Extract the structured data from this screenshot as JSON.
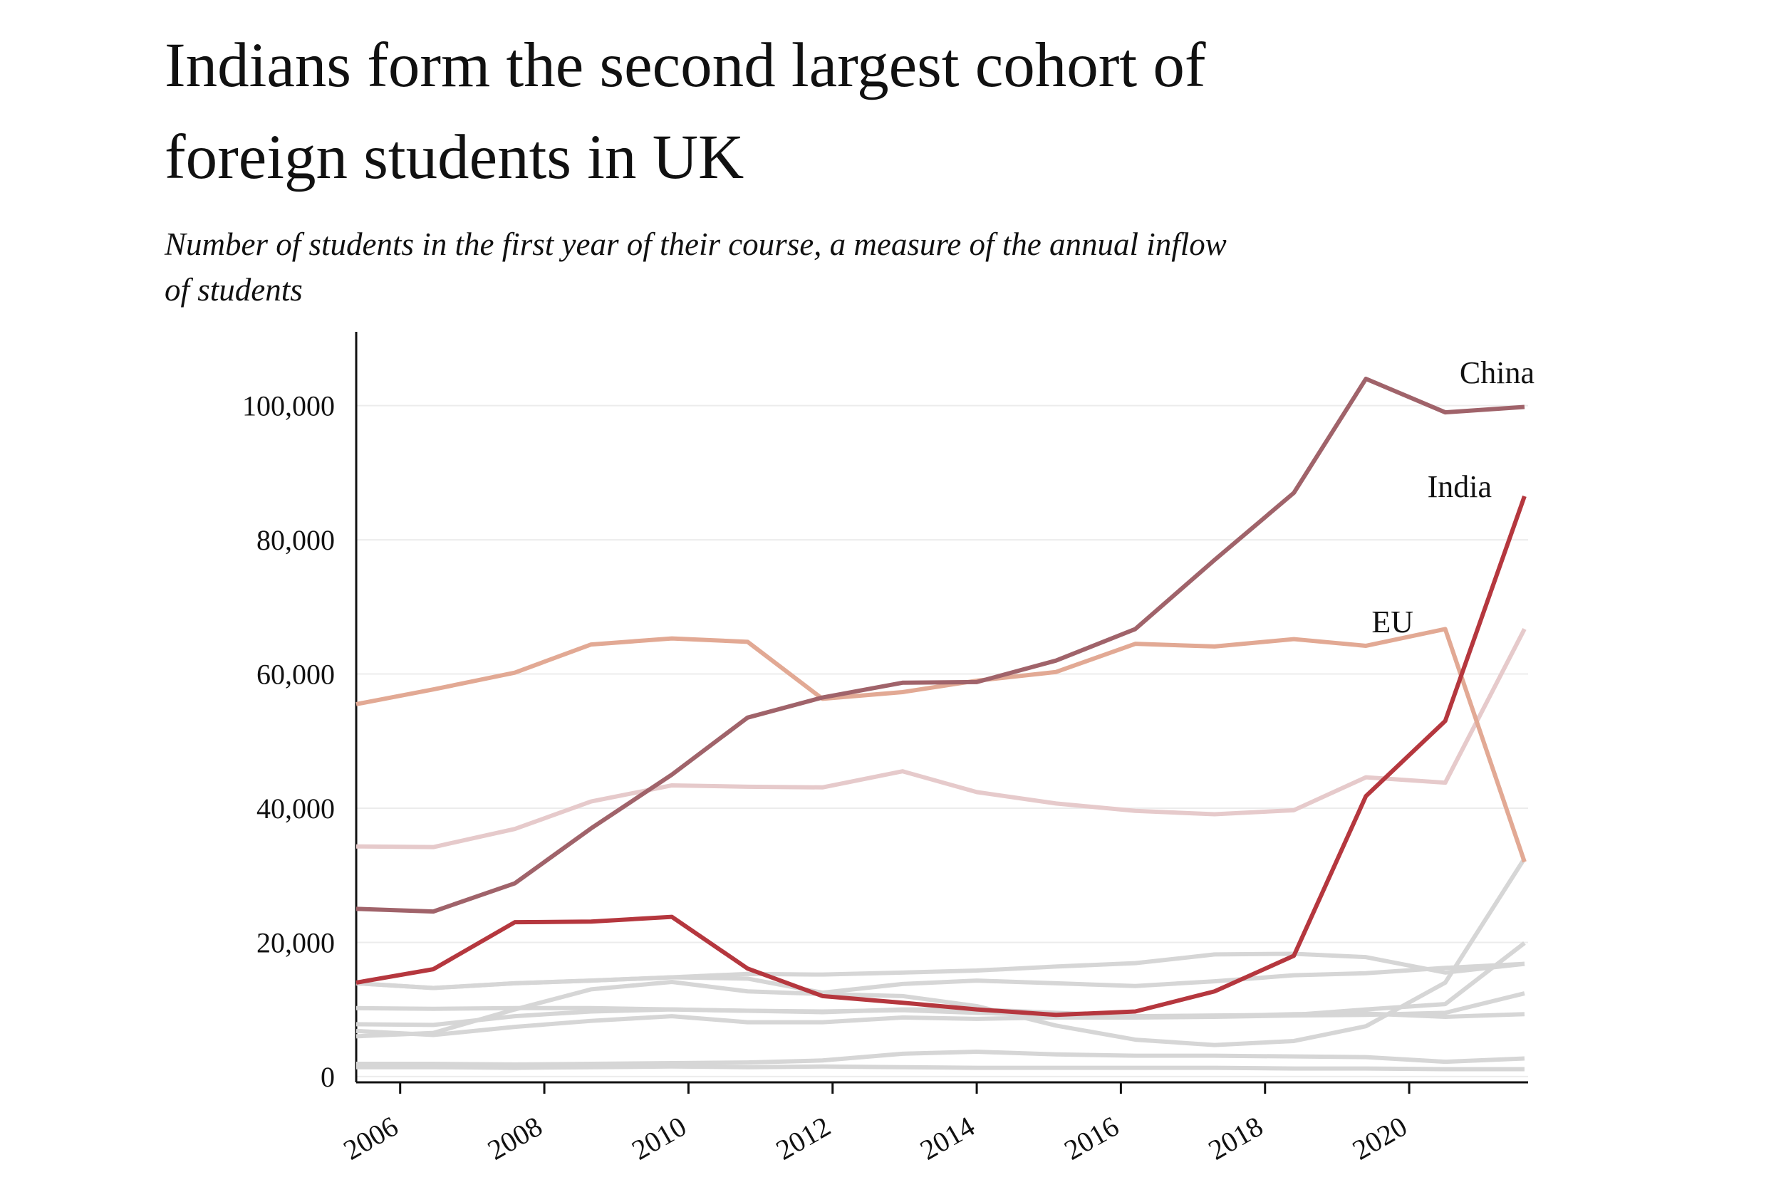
{
  "chart_data": {
    "type": "line",
    "title": [
      "Indians form the second largest cohort of",
      "foreign students in UK"
    ],
    "subtitle": [
      "Number of students in the first year of their course, a measure of the annual inflow",
      "of students"
    ],
    "x": [
      2005.39,
      2006.46,
      2007.59,
      2008.65,
      2009.77,
      2010.82,
      2011.86,
      2012.97,
      2014.0,
      2015.1,
      2016.2,
      2017.3,
      2018.4,
      2019.4,
      2020.5,
      2021.6
    ],
    "xlim": [
      2005.39,
      2021.65
    ],
    "xticks": [
      2006,
      2008,
      2010,
      2012,
      2014,
      2016,
      2018,
      2020
    ],
    "ylim": [
      -860,
      111000
    ],
    "yticks": [
      0,
      {
        "value": 20000,
        "label": "20,000"
      },
      {
        "value": 40000,
        "label": "40,000"
      },
      {
        "value": 60000,
        "label": "60,000"
      },
      {
        "value": 80000,
        "label": "80,000"
      },
      {
        "value": 100000,
        "label": "100,000"
      }
    ],
    "grid": true,
    "series": [
      {
        "color": "#d6d6d6",
        "values": [
          6000,
          6500,
          10000,
          13000,
          14100,
          12700,
          12300,
          12000,
          10500,
          7600,
          5500,
          4700,
          5300,
          7500,
          14000,
          32500
        ]
      },
      {
        "color": "#d6d6d6",
        "values": [
          13900,
          13200,
          13900,
          14300,
          14800,
          15300,
          15200,
          15500,
          15800,
          16400,
          16900,
          18200,
          18300,
          17800,
          15500,
          16800
        ]
      },
      {
        "color": "#d6d6d6",
        "values": [
          10200,
          10100,
          10200,
          10200,
          10000,
          9800,
          9700,
          9900,
          9500,
          9100,
          9000,
          9100,
          9200,
          10000,
          10800,
          19900
        ]
      },
      {
        "color": "#d6d6d6",
        "values": [
          7800,
          7700,
          9000,
          9700,
          10000,
          9800,
          9600,
          10000,
          10000,
          9500,
          9000,
          9000,
          9300,
          9400,
          8900,
          9300
        ]
      },
      {
        "color": "#d6d6d6",
        "values": [
          6800,
          6200,
          7400,
          8300,
          9000,
          8100,
          8100,
          8800,
          8600,
          8800,
          8800,
          8900,
          9100,
          9200,
          9500,
          12400
        ]
      },
      {
        "color": "#d6d6d6",
        "values": [
          13900,
          13200,
          13900,
          14300,
          14800,
          14600,
          12500,
          13800,
          14300,
          13900,
          13500,
          14200,
          15100,
          15400,
          16200,
          16800
        ]
      },
      {
        "color": "#d6d6d6",
        "values": [
          1900,
          1900,
          1800,
          1900,
          2000,
          2100,
          2400,
          3400,
          3700,
          3300,
          3100,
          3100,
          3000,
          2900,
          2200,
          2700
        ]
      },
      {
        "color": "#d6d6d6",
        "values": [
          1400,
          1400,
          1300,
          1400,
          1500,
          1400,
          1500,
          1400,
          1300,
          1300,
          1300,
          1300,
          1200,
          1200,
          1100,
          1100
        ]
      },
      {
        "color": "#e6cacb",
        "values": [
          34300,
          34200,
          36900,
          41000,
          43400,
          43200,
          43100,
          45500,
          42400,
          40700,
          39600,
          39100,
          39700,
          44600,
          43800,
          66700
        ]
      },
      {
        "name": "EU",
        "color": "#e2a994",
        "values": [
          55500,
          57700,
          60200,
          64400,
          65300,
          64800,
          56300,
          57300,
          59000,
          60300,
          64500,
          64100,
          65200,
          64200,
          66700,
          32000
        ]
      },
      {
        "name": "China",
        "color": "#a0636a",
        "values": [
          25000,
          24600,
          28800,
          37000,
          45000,
          53500,
          56500,
          58700,
          58800,
          62000,
          66700,
          77000,
          87000,
          104000,
          99000,
          99800
        ]
      },
      {
        "name": "India",
        "color": "#b5373e",
        "values": [
          14000,
          16000,
          23000,
          23100,
          23800,
          16100,
          12000,
          11000,
          10000,
          9200,
          9700,
          12700,
          18000,
          41800,
          53000,
          86500
        ]
      }
    ]
  }
}
